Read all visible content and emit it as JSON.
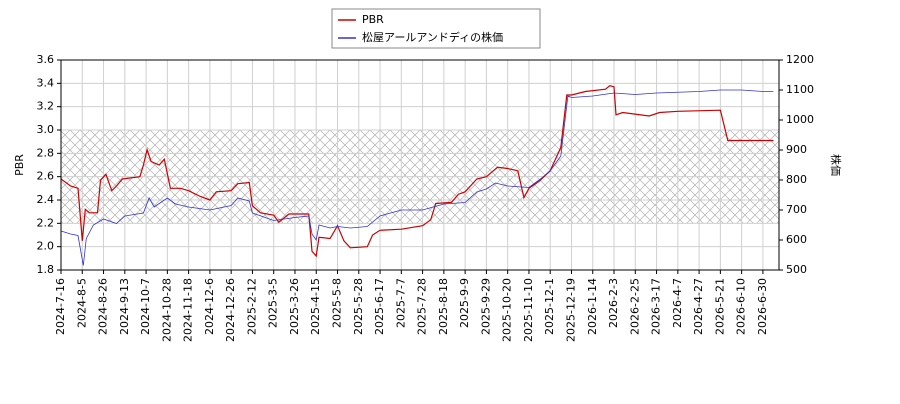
{
  "chart_data": {
    "type": "line",
    "ylabel": "PBR",
    "y2label": "株価",
    "ylim": [
      1.8,
      3.6
    ],
    "yticks": [
      1.8,
      {
        "value": 2.0,
        "label": "2.0"
      },
      2.2,
      2.4,
      2.6,
      2.8,
      {
        "value": 3.0,
        "label": "3.0"
      },
      3.2,
      3.4,
      3.6
    ],
    "y2lim": [
      500,
      1200
    ],
    "y2ticks": [
      500,
      600,
      700,
      800,
      900,
      1000,
      1100,
      1200
    ],
    "shaded_range": [
      2.2,
      3.0
    ],
    "grid": true,
    "legend": "top",
    "xticks": [
      "2024-7-16",
      "2024-8-5",
      "2024-8-26",
      "2024-9-13",
      "2024-10-7",
      "2024-10-28",
      "2024-11-18",
      "2024-12-6",
      "2024-12-26",
      "2025-2-12",
      "2025-3-5",
      "2025-3-26",
      "2025-4-15",
      "2025-5-8",
      "2025-5-28",
      "2025-6-17",
      "2025-7-7",
      "2025-7-28",
      "2025-8-18",
      "2025-9-9",
      "2025-9-29",
      "2025-10-20",
      "2025-11-10",
      "2025-12-1",
      "2025-12-19",
      "2026-1-14",
      "2026-2-3",
      "2026-2-25",
      "2026-3-17",
      "2026-4-7",
      "2026-4-27",
      "2026-5-21",
      "2026-6-10",
      "2026-6-30"
    ],
    "series": [
      {
        "name": "PBR",
        "color": "#cc0000",
        "x": [
          "2024-7-16",
          "2024-7-25",
          "2024-8-1",
          "2024-8-5",
          "2024-8-8",
          "2024-8-12",
          "2024-8-20",
          "2024-8-23",
          "2024-8-28",
          "2024-9-2",
          "2024-9-6",
          "2024-9-11",
          "2024-9-30",
          "2024-10-4",
          "2024-10-8",
          "2024-10-12",
          "2024-10-20",
          "2024-10-25",
          "2024-10-31",
          "2024-11-10",
          "2024-11-18",
          "2024-11-28",
          "2024-12-6",
          "2024-12-12",
          "2024-12-26",
          "2025-1-10",
          "2025-2-5",
          "2025-2-12",
          "2025-2-20",
          "2025-3-5",
          "2025-3-10",
          "2025-3-20",
          "2025-4-8",
          "2025-4-11",
          "2025-4-15",
          "2025-4-18",
          "2025-4-30",
          "2025-5-8",
          "2025-5-14",
          "2025-5-20",
          "2025-6-5",
          "2025-6-10",
          "2025-6-17",
          "2025-7-7",
          "2025-7-28",
          "2025-8-5",
          "2025-8-10",
          "2025-8-26",
          "2025-9-2",
          "2025-9-9",
          "2025-9-20",
          "2025-9-29",
          "2025-10-10",
          "2025-10-20",
          "2025-10-30",
          "2025-11-5",
          "2025-11-10",
          "2025-11-20",
          "2025-12-1",
          "2025-12-10",
          "2025-12-15",
          "2025-12-19",
          "2026-1-5",
          "2026-1-26",
          "2026-1-30",
          "2026-2-3",
          "2026-2-5",
          "2026-2-12",
          "2026-3-10",
          "2026-3-20",
          "2026-4-7",
          "2026-5-21",
          "2026-5-28",
          "2026-6-30",
          "2026-7-10"
        ],
        "values": [
          2.58,
          2.52,
          2.5,
          2.05,
          2.32,
          2.29,
          2.29,
          2.57,
          2.62,
          2.48,
          2.52,
          2.58,
          2.6,
          2.7,
          2.83,
          2.73,
          2.7,
          2.75,
          2.5,
          2.5,
          2.48,
          2.43,
          2.4,
          2.47,
          2.48,
          2.54,
          2.55,
          2.35,
          2.29,
          2.27,
          2.21,
          2.28,
          2.28,
          1.96,
          1.92,
          2.08,
          2.07,
          2.18,
          2.05,
          1.99,
          2.0,
          2.1,
          2.14,
          2.15,
          2.18,
          2.23,
          2.37,
          2.38,
          2.45,
          2.47,
          2.58,
          2.6,
          2.68,
          2.67,
          2.65,
          2.42,
          2.5,
          2.56,
          2.65,
          2.85,
          3.3,
          3.3,
          3.33,
          3.35,
          3.38,
          3.37,
          3.13,
          3.15,
          3.12,
          3.15,
          3.16,
          3.17,
          2.91,
          2.91,
          2.91
        ]
      },
      {
        "name": "松屋アールアンドディの株価",
        "color": "#3333cc",
        "axis": "y2",
        "x": [
          "2024-7-16",
          "2024-7-25",
          "2024-8-1",
          "2024-8-6",
          "2024-8-9",
          "2024-8-16",
          "2024-8-26",
          "2024-9-6",
          "2024-9-13",
          "2024-10-4",
          "2024-10-10",
          "2024-10-15",
          "2024-10-28",
          "2024-11-5",
          "2024-11-18",
          "2024-12-6",
          "2024-12-26",
          "2025-1-10",
          "2025-2-5",
          "2025-2-12",
          "2025-3-5",
          "2025-3-26",
          "2025-4-8",
          "2025-4-11",
          "2025-4-15",
          "2025-4-18",
          "2025-4-30",
          "2025-5-8",
          "2025-5-20",
          "2025-6-5",
          "2025-6-17",
          "2025-7-7",
          "2025-7-28",
          "2025-8-18",
          "2025-9-9",
          "2025-9-20",
          "2025-9-29",
          "2025-10-8",
          "2025-10-20",
          "2025-11-10",
          "2025-11-20",
          "2025-12-1",
          "2025-12-10",
          "2025-12-16",
          "2025-12-19",
          "2026-1-14",
          "2026-2-3",
          "2026-2-25",
          "2026-3-17",
          "2026-4-27",
          "2026-5-21",
          "2026-6-10",
          "2026-6-30",
          "2026-7-10"
        ],
        "values": [
          630,
          620,
          615,
          515,
          605,
          650,
          670,
          655,
          680,
          690,
          740,
          710,
          740,
          720,
          710,
          700,
          715,
          740,
          730,
          690,
          665,
          675,
          680,
          620,
          600,
          650,
          640,
          645,
          640,
          645,
          680,
          700,
          700,
          720,
          725,
          760,
          770,
          790,
          780,
          775,
          800,
          830,
          880,
          1080,
          1075,
          1080,
          1090,
          1085,
          1090,
          1095,
          1100,
          1100,
          1095,
          1095
        ]
      }
    ]
  }
}
